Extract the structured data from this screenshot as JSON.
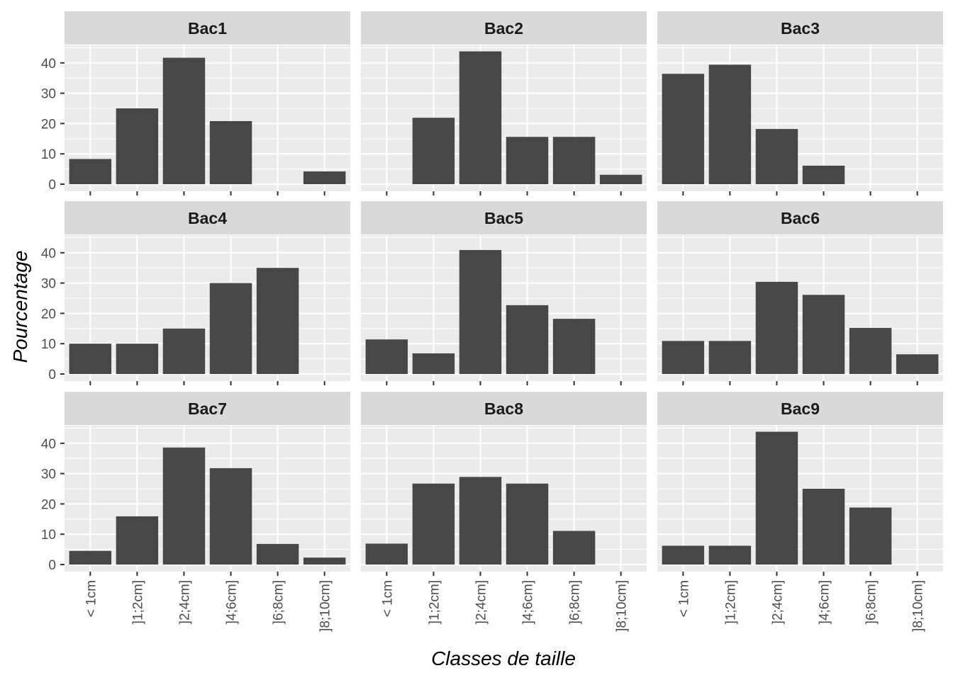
{
  "chart_data": {
    "type": "bar",
    "xlabel": "Classes de taille",
    "ylabel": "Pourcentage",
    "ylim": [
      0,
      46
    ],
    "y_ticks": [
      0,
      10,
      20,
      30,
      40
    ],
    "grid": true,
    "categories": [
      "< 1cm",
      "]1;2cm]",
      "]2;4cm]",
      "]4;6cm]",
      "]6;8cm]",
      "]8;10cm]"
    ],
    "facets": [
      {
        "name": "Bac1",
        "values": [
          8.3,
          25.0,
          41.7,
          20.8,
          0,
          4.2
        ]
      },
      {
        "name": "Bac2",
        "values": [
          0,
          21.9,
          43.8,
          15.6,
          15.6,
          3.1
        ]
      },
      {
        "name": "Bac3",
        "values": [
          36.4,
          39.4,
          18.2,
          6.1,
          0,
          0
        ]
      },
      {
        "name": "Bac4",
        "values": [
          10.0,
          10.0,
          15.0,
          30.0,
          35.0,
          0
        ]
      },
      {
        "name": "Bac5",
        "values": [
          11.4,
          6.8,
          40.9,
          22.7,
          18.2,
          0
        ]
      },
      {
        "name": "Bac6",
        "values": [
          10.9,
          10.9,
          30.4,
          26.1,
          15.2,
          6.5
        ]
      },
      {
        "name": "Bac7",
        "values": [
          4.5,
          15.9,
          38.6,
          31.8,
          6.8,
          2.3
        ]
      },
      {
        "name": "Bac8",
        "values": [
          6.9,
          26.7,
          28.9,
          26.7,
          11.1,
          0
        ]
      },
      {
        "name": "Bac9",
        "values": [
          6.2,
          6.2,
          43.8,
          25.0,
          18.8,
          0
        ]
      }
    ],
    "colors": {
      "bar": "#474747",
      "panel": "#ebebeb",
      "strip": "#d9d9d9",
      "grid": "#ffffff"
    }
  }
}
